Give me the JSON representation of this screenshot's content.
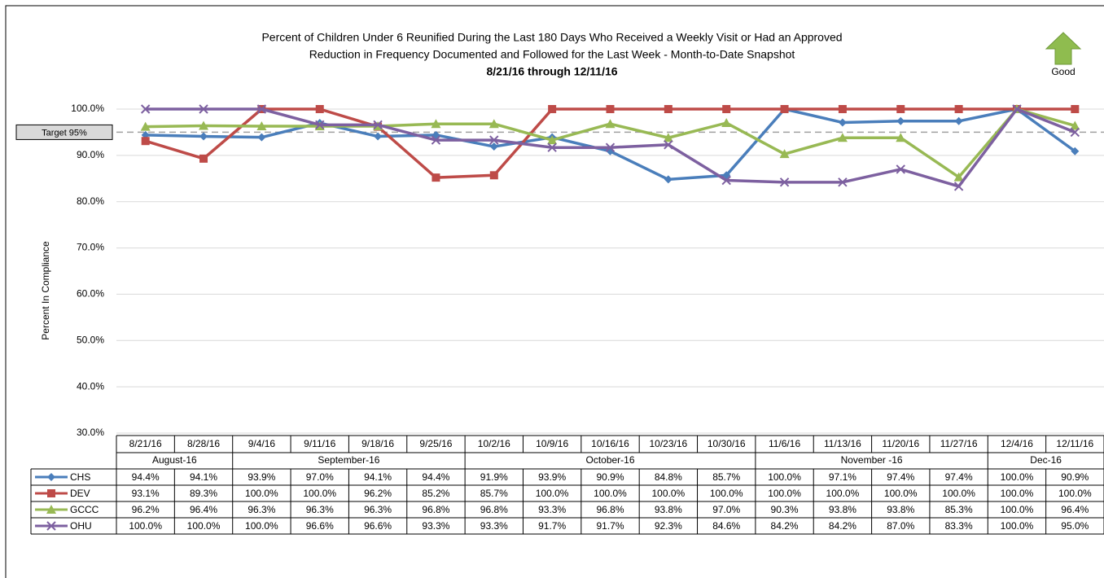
{
  "chart_data": {
    "type": "line",
    "title": [
      "Percent of Children Under 6 Reunified During the Last 180 Days Who Received a Weekly Visit or Had an Approved",
      "Reduction in Frequency Documented and Followed for the Last Week - Month-to-Date Snapshot"
    ],
    "subtitle": "8/21/16 through 12/11/16",
    "indicator": "Good",
    "y_label": "Percent In Compliance",
    "target": {
      "label": "Target 95%",
      "value": 95
    },
    "ylim": [
      30,
      100
    ],
    "yticks": [
      {
        "value": 30,
        "label": "30.0%"
      },
      {
        "value": 40,
        "label": "40.0%"
      },
      {
        "value": 50,
        "label": "50.0%"
      },
      {
        "value": 60,
        "label": "60.0%"
      },
      {
        "value": 70,
        "label": "70.0%"
      },
      {
        "value": 80,
        "label": "80.0%"
      },
      {
        "value": 90,
        "label": "90.0%"
      },
      {
        "value": 100,
        "label": "100.0%"
      }
    ],
    "grid": true,
    "category_groups": [
      {
        "name": "August-16",
        "categories": [
          "8/21/16",
          "8/28/16"
        ]
      },
      {
        "name": "September-16",
        "categories": [
          "9/4/16",
          "9/11/16",
          "9/18/16",
          "9/25/16"
        ]
      },
      {
        "name": "October-16",
        "categories": [
          "10/2/16",
          "10/9/16",
          "10/16/16",
          "10/23/16",
          "10/30/16"
        ]
      },
      {
        "name": "November -16",
        "categories": [
          "11/6/16",
          "11/13/16",
          "11/20/16",
          "11/27/16"
        ]
      },
      {
        "name": "Dec-16",
        "categories": [
          "12/4/16",
          "12/11/16"
        ]
      }
    ],
    "series": [
      {
        "name": "CHS",
        "color": "#4a7ebb",
        "marker": "diamond",
        "values": [
          94.4,
          94.1,
          93.9,
          97.0,
          94.1,
          94.4,
          91.9,
          93.9,
          90.9,
          84.8,
          85.7,
          100.0,
          97.1,
          97.4,
          97.4,
          100.0,
          90.9
        ],
        "value_labels": [
          "94.4%",
          "94.1%",
          "93.9%",
          "97.0%",
          "94.1%",
          "94.4%",
          "91.9%",
          "93.9%",
          "90.9%",
          "84.8%",
          "85.7%",
          "100.0%",
          "97.1%",
          "97.4%",
          "97.4%",
          "100.0%",
          "90.9%"
        ]
      },
      {
        "name": "DEV",
        "color": "#be4b48",
        "marker": "square",
        "values": [
          93.1,
          89.3,
          100.0,
          100.0,
          96.2,
          85.2,
          85.7,
          100.0,
          100.0,
          100.0,
          100.0,
          100.0,
          100.0,
          100.0,
          100.0,
          100.0,
          100.0
        ],
        "value_labels": [
          "93.1%",
          "89.3%",
          "100.0%",
          "100.0%",
          "96.2%",
          "85.2%",
          "85.7%",
          "100.0%",
          "100.0%",
          "100.0%",
          "100.0%",
          "100.0%",
          "100.0%",
          "100.0%",
          "100.0%",
          "100.0%",
          "100.0%"
        ]
      },
      {
        "name": "GCCC",
        "color": "#98b954",
        "marker": "triangle",
        "values": [
          96.2,
          96.4,
          96.3,
          96.3,
          96.3,
          96.8,
          96.8,
          93.3,
          96.8,
          93.8,
          97.0,
          90.3,
          93.8,
          93.8,
          85.3,
          100.0,
          96.4
        ],
        "value_labels": [
          "96.2%",
          "96.4%",
          "96.3%",
          "96.3%",
          "96.3%",
          "96.8%",
          "96.8%",
          "93.3%",
          "96.8%",
          "93.8%",
          "97.0%",
          "90.3%",
          "93.8%",
          "93.8%",
          "85.3%",
          "100.0%",
          "96.4%"
        ]
      },
      {
        "name": "OHU",
        "color": "#7d60a0",
        "marker": "x",
        "values": [
          100.0,
          100.0,
          100.0,
          96.6,
          96.6,
          93.3,
          93.3,
          91.7,
          91.7,
          92.3,
          84.6,
          84.2,
          84.2,
          87.0,
          83.3,
          100.0,
          95.0
        ],
        "value_labels": [
          "100.0%",
          "100.0%",
          "100.0%",
          "96.6%",
          "96.6%",
          "93.3%",
          "93.3%",
          "91.7%",
          "91.7%",
          "92.3%",
          "84.6%",
          "84.2%",
          "84.2%",
          "87.0%",
          "83.3%",
          "100.0%",
          "95.0%"
        ]
      }
    ]
  }
}
